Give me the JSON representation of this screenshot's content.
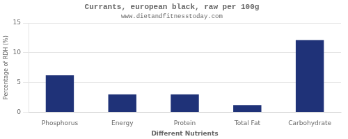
{
  "chart_data": {
    "type": "bar",
    "title": "Currants, european black, raw per 100g",
    "subtitle": "www.dietandfitnesstoday.com",
    "xlabel": "Different Nutrients",
    "ylabel": "Percentage of RDH (%)",
    "categories": [
      "Phosphorus",
      "Energy",
      "Protein",
      "Total Fat",
      "Carbohydrate"
    ],
    "values": [
      6.2,
      3.0,
      3.0,
      1.2,
      12.1
    ],
    "color": "#1f3278",
    "ylim": [
      0,
      15
    ],
    "yticks": [
      0,
      5,
      10,
      15
    ],
    "grid": true
  }
}
